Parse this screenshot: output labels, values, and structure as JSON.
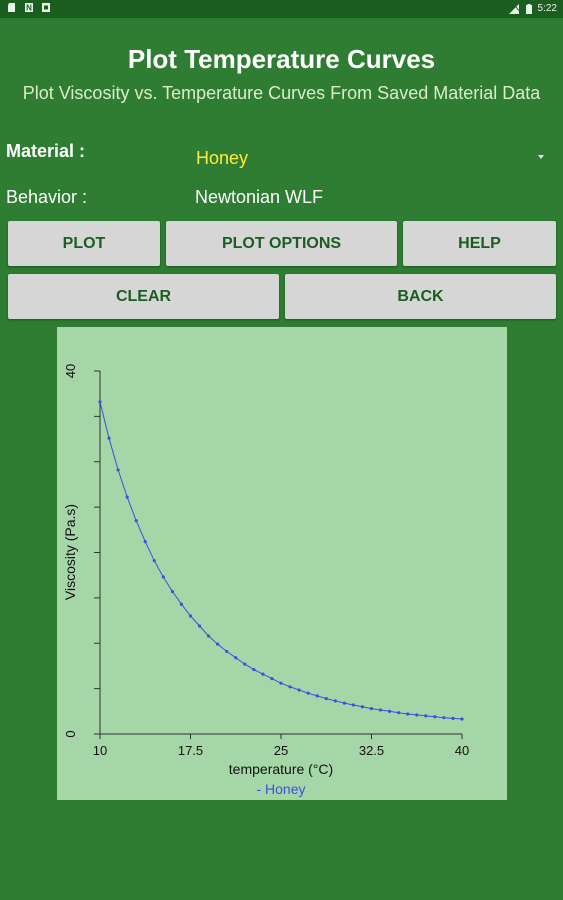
{
  "status_bar": {
    "left_icons": [
      "sd-card-icon",
      "n-notification-icon",
      "square-notification-icon"
    ],
    "right_icons": [
      "signal-icon",
      "battery-icon"
    ],
    "time": "5:22"
  },
  "header": {
    "title": "Plot Temperature Curves",
    "subtitle": "Plot Viscosity vs. Temperature Curves From Saved Material Data"
  },
  "form": {
    "material_label": "Material :",
    "material_value": "Honey",
    "behavior_label": "Behavior :",
    "behavior_value": "Newtonian WLF"
  },
  "buttons": {
    "plot": "PLOT",
    "plot_options": "PLOT OPTIONS",
    "help": "HELP",
    "clear": "CLEAR",
    "back": "BACK"
  },
  "colors": {
    "background": "#2e7d32",
    "chart_background": "#a5d6a7",
    "button": "#d6d6d6",
    "button_text": "#1b5e20",
    "material_value": "#ffeb3b",
    "series": "#3d4fe0"
  },
  "chart_data": {
    "type": "line",
    "xlabel": "temperature (°C)",
    "ylabel": "Viscosity (Pa.s)",
    "xlim": [
      10,
      40
    ],
    "ylim": [
      0,
      40
    ],
    "x_ticks": [
      "10",
      "17.5",
      "25",
      "32.5",
      "40"
    ],
    "y_ticks": [
      "0",
      "40"
    ],
    "legend": "- Honey",
    "series": [
      {
        "name": "Honey",
        "x": [
          10,
          10.75,
          11.5,
          12.25,
          13,
          13.75,
          14.5,
          15.25,
          16,
          16.75,
          17.5,
          18.25,
          19,
          19.75,
          20.5,
          21.25,
          22,
          22.75,
          23.5,
          24.25,
          25,
          25.75,
          26.5,
          27.25,
          28,
          28.75,
          29.5,
          30.25,
          31,
          31.75,
          32.5,
          33.25,
          34,
          34.75,
          35.5,
          36.25,
          37,
          37.75,
          38.5,
          39.25,
          40
        ],
        "y": [
          36.6,
          32.6,
          29.1,
          26.1,
          23.5,
          21.2,
          19.1,
          17.3,
          15.7,
          14.3,
          13.0,
          11.9,
          10.8,
          9.9,
          9.1,
          8.4,
          7.7,
          7.1,
          6.6,
          6.1,
          5.6,
          5.2,
          4.85,
          4.5,
          4.2,
          3.9,
          3.65,
          3.4,
          3.2,
          3.0,
          2.8,
          2.65,
          2.5,
          2.35,
          2.2,
          2.1,
          2.0,
          1.9,
          1.8,
          1.72,
          1.65
        ]
      }
    ]
  }
}
